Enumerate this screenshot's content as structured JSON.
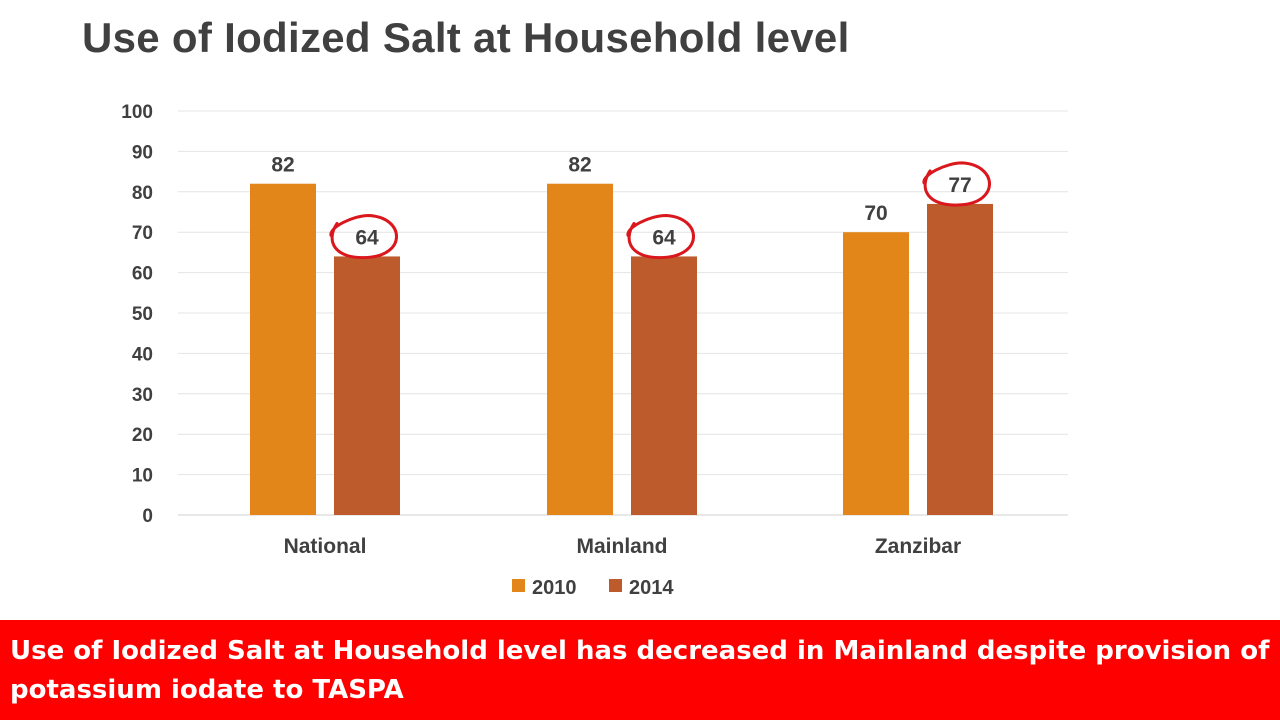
{
  "slide": {
    "title": "Use of Iodized Salt at Household level",
    "footer_note": "Use of Iodized  Salt at Household level has decreased in Mainland despite provision of potassium iodate to TASPA",
    "footer_background": "#ff0000"
  },
  "chart_data": {
    "type": "bar",
    "title": "",
    "xlabel": "",
    "ylabel": "",
    "ylim": [
      0,
      100
    ],
    "yticks": [
      0,
      10,
      20,
      30,
      40,
      50,
      60,
      70,
      80,
      90,
      100
    ],
    "grid": true,
    "legend": "bottom",
    "categories": [
      "National",
      "Mainland",
      "Zanzibar"
    ],
    "series": [
      {
        "name": "2010",
        "values": [
          82,
          82,
          70
        ],
        "color": "#e3861a"
      },
      {
        "name": "2014",
        "values": [
          64,
          64,
          77
        ],
        "color": "#be5b2d"
      }
    ],
    "data_label_overrides": [
      [
        82,
        64
      ],
      [
        82,
        64
      ],
      [
        70,
        77
      ]
    ],
    "annotations": [
      {
        "type": "hand-drawn-circle",
        "color": "#d9171c",
        "series": "2014",
        "category": "National"
      },
      {
        "type": "hand-drawn-circle",
        "color": "#d9171c",
        "series": "2014",
        "category": "Mainland"
      },
      {
        "type": "hand-drawn-circle",
        "color": "#d9171c",
        "series": "2014",
        "category": "Zanzibar"
      }
    ]
  }
}
